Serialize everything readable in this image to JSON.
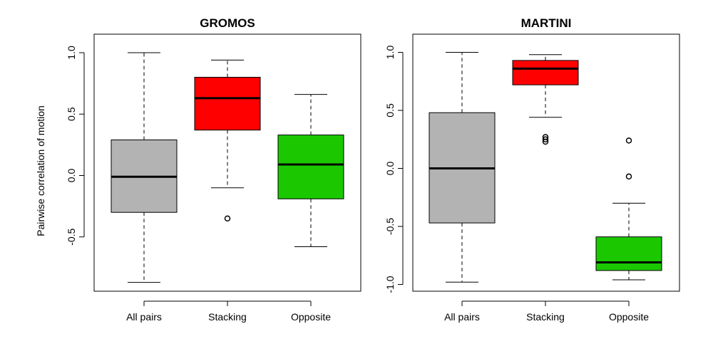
{
  "ylabel": "Pairwise correlation of motion",
  "colors": {
    "gray": "#b3b3b3",
    "red": "#ff0000",
    "green": "#1bc800"
  },
  "chart_data": [
    {
      "type": "boxplot",
      "title": "GROMOS",
      "ylabel": "Pairwise correlation of motion",
      "ylim": [
        -0.95,
        1.05
      ],
      "yticks": [
        "-0.5",
        "0.0",
        "0.5",
        "1.0"
      ],
      "categories": [
        "All pairs",
        "Stacking",
        "Opposite"
      ],
      "boxes": [
        {
          "whisker_low": -0.87,
          "q1": -0.3,
          "median": -0.01,
          "q3": 0.29,
          "whisker_high": 1.0,
          "outliers": [],
          "color": "#b3b3b3"
        },
        {
          "whisker_low": -0.1,
          "q1": 0.37,
          "median": 0.63,
          "q3": 0.8,
          "whisker_high": 0.94,
          "outliers": [
            -0.35
          ],
          "color": "#ff0000"
        },
        {
          "whisker_low": -0.58,
          "q1": -0.19,
          "median": 0.09,
          "q3": 0.33,
          "whisker_high": 0.66,
          "outliers": [],
          "color": "#1bc800"
        }
      ]
    },
    {
      "type": "boxplot",
      "title": "MARTINI",
      "ylim": [
        -1.05,
        1.05
      ],
      "yticks": [
        "-1.0",
        "-0.5",
        "0.0",
        "0.5",
        "1.0"
      ],
      "categories": [
        "All pairs",
        "Stacking",
        "Opposite"
      ],
      "boxes": [
        {
          "whisker_low": -0.98,
          "q1": -0.47,
          "median": 0.0,
          "q3": 0.48,
          "whisker_high": 1.0,
          "outliers": [],
          "color": "#b3b3b3"
        },
        {
          "whisker_low": 0.44,
          "q1": 0.72,
          "median": 0.86,
          "q3": 0.93,
          "whisker_high": 0.98,
          "outliers": [
            0.27,
            0.25,
            0.23
          ],
          "color": "#ff0000"
        },
        {
          "whisker_low": -0.96,
          "q1": -0.88,
          "median": -0.81,
          "q3": -0.59,
          "whisker_high": -0.3,
          "outliers": [
            0.24,
            -0.07
          ],
          "color": "#1bc800"
        }
      ]
    }
  ]
}
